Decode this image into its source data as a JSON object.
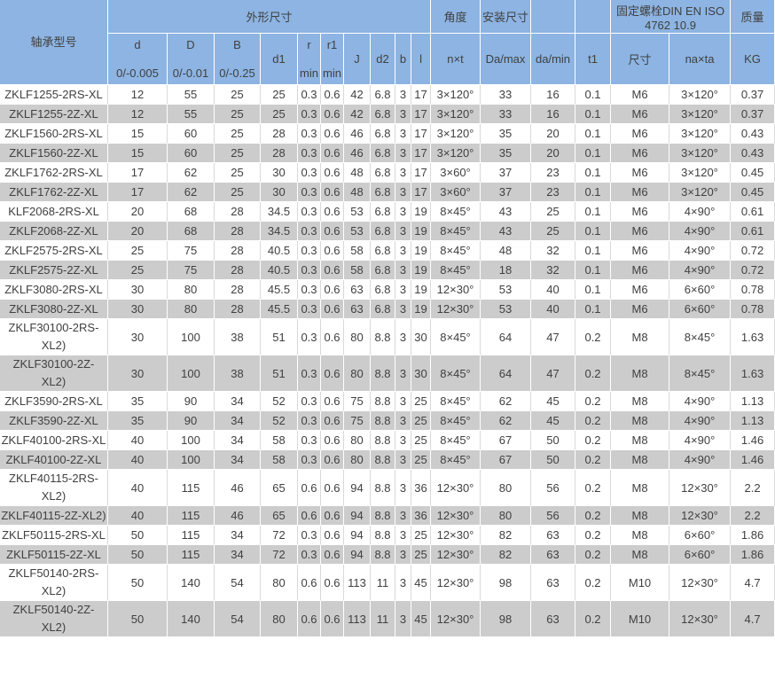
{
  "table": {
    "header": {
      "model": "轴承型号",
      "groups": {
        "outer_dims": "外形尺寸",
        "angle": "角度",
        "mount_dims": "安装尺寸",
        "blank_a": "",
        "blank_b": "",
        "bolt": "固定螺栓DIN EN ISO 4762  10.9",
        "mass": "质量"
      },
      "columns": {
        "d": {
          "label": "d",
          "tol": "0/-0.005"
        },
        "D": {
          "label": "D",
          "tol": "0/-0.01"
        },
        "B": {
          "label": "B",
          "tol": "0/-0.25"
        },
        "d1": {
          "label": "d1"
        },
        "r": {
          "label": "r",
          "tol": "min"
        },
        "r1": {
          "label": "r1",
          "tol": "min"
        },
        "J": {
          "label": "J"
        },
        "d2": {
          "label": "d2"
        },
        "b": {
          "label": "b"
        },
        "l": {
          "label": "l"
        },
        "nxt": {
          "label": "n×t"
        },
        "da_max": {
          "label": "Da/max"
        },
        "da_min": {
          "label": "da/min"
        },
        "t1": {
          "label": "t1"
        },
        "bolt_size": {
          "label": "尺寸"
        },
        "naxta": {
          "label": "na×ta"
        },
        "kg": {
          "label": "KG"
        }
      }
    },
    "rows": [
      [
        "ZKLF1255-2RS-XL",
        "12",
        "55",
        "25",
        "25",
        "0.3",
        "0.6",
        "42",
        "6.8",
        "3",
        "17",
        "3×120°",
        "33",
        "16",
        "0.1",
        "M6",
        "3×120°",
        "0.37"
      ],
      [
        "ZKLF1255-2Z-XL",
        "12",
        "55",
        "25",
        "25",
        "0.3",
        "0.6",
        "42",
        "6.8",
        "3",
        "17",
        "3×120°",
        "33",
        "16",
        "0.1",
        "M6",
        "3×120°",
        "0.37"
      ],
      [
        "ZKLF1560-2RS-XL",
        "15",
        "60",
        "25",
        "28",
        "0.3",
        "0.6",
        "46",
        "6.8",
        "3",
        "17",
        "3×120°",
        "35",
        "20",
        "0.1",
        "M6",
        "3×120°",
        "0.43"
      ],
      [
        "ZKLF1560-2Z-XL",
        "15",
        "60",
        "25",
        "28",
        "0.3",
        "0.6",
        "46",
        "6.8",
        "3",
        "17",
        "3×120°",
        "35",
        "20",
        "0.1",
        "M6",
        "3×120°",
        "0.43"
      ],
      [
        "ZKLF1762-2RS-XL",
        "17",
        "62",
        "25",
        "30",
        "0.3",
        "0.6",
        "48",
        "6.8",
        "3",
        "17",
        "3×60°",
        "37",
        "23",
        "0.1",
        "M6",
        "3×120°",
        "0.45"
      ],
      [
        "ZKLF1762-2Z-XL",
        "17",
        "62",
        "25",
        "30",
        "0.3",
        "0.6",
        "48",
        "6.8",
        "3",
        "17",
        "3×60°",
        "37",
        "23",
        "0.1",
        "M6",
        "3×120°",
        "0.45"
      ],
      [
        "KLF2068-2RS-XL",
        "20",
        "68",
        "28",
        "34.5",
        "0.3",
        "0.6",
        "53",
        "6.8",
        "3",
        "19",
        "8×45°",
        "43",
        "25",
        "0.1",
        "M6",
        "4×90°",
        "0.61"
      ],
      [
        "ZKLF2068-2Z-XL",
        "20",
        "68",
        "28",
        "34.5",
        "0.3",
        "0.6",
        "53",
        "6.8",
        "3",
        "19",
        "8×45°",
        "43",
        "25",
        "0.1",
        "M6",
        "4×90°",
        "0.61"
      ],
      [
        "ZKLF2575-2RS-XL",
        "25",
        "75",
        "28",
        "40.5",
        "0.3",
        "0.6",
        "58",
        "6.8",
        "3",
        "19",
        "8×45°",
        "48",
        "32",
        "0.1",
        "M6",
        "4×90°",
        "0.72"
      ],
      [
        "ZKLF2575-2Z-XL",
        "25",
        "75",
        "28",
        "40.5",
        "0.3",
        "0.6",
        "58",
        "6.8",
        "3",
        "19",
        "8×45°",
        "18",
        "32",
        "0.1",
        "M6",
        "4×90°",
        "0.72"
      ],
      [
        "ZKLF3080-2RS-XL",
        "30",
        "80",
        "28",
        "45.5",
        "0.3",
        "0.6",
        "63",
        "6.8",
        "3",
        "19",
        "12×30°",
        "53",
        "40",
        "0.1",
        "M6",
        "6×60°",
        "0.78"
      ],
      [
        "ZKLF3080-2Z-XL",
        "30",
        "80",
        "28",
        "45.5",
        "0.3",
        "0.6",
        "63",
        "6.8",
        "3",
        "19",
        "12×30°",
        "53",
        "40",
        "0.1",
        "M6",
        "6×60°",
        "0.78"
      ],
      [
        "ZKLF30100-2RS-XL2)",
        "30",
        "100",
        "38",
        "51",
        "0.3",
        "0.6",
        "80",
        "8.8",
        "3",
        "30",
        "8×45°",
        "64",
        "47",
        "0.2",
        "M8",
        "8×45°",
        "1.63"
      ],
      [
        "ZKLF30100-2Z-XL2)",
        "30",
        "100",
        "38",
        "51",
        "0.3",
        "0.6",
        "80",
        "8.8",
        "3",
        "30",
        "8×45°",
        "64",
        "47",
        "0.2",
        "M8",
        "8×45°",
        "1.63"
      ],
      [
        "ZKLF3590-2RS-XL",
        "35",
        "90",
        "34",
        "52",
        "0.3",
        "0.6",
        "75",
        "8.8",
        "3",
        "25",
        "8×45°",
        "62",
        "45",
        "0.2",
        "M8",
        "4×90°",
        "1.13"
      ],
      [
        "ZKLF3590-2Z-XL",
        "35",
        "90",
        "34",
        "52",
        "0.3",
        "0.6",
        "75",
        "8.8",
        "3",
        "25",
        "8×45°",
        "62",
        "45",
        "0.2",
        "M8",
        "4×90°",
        "1.13"
      ],
      [
        "ZKLF40100-2RS-XL",
        "40",
        "100",
        "34",
        "58",
        "0.3",
        "0.6",
        "80",
        "8.8",
        "3",
        "25",
        "8×45°",
        "67",
        "50",
        "0.2",
        "M8",
        "4×90°",
        "1.46"
      ],
      [
        "ZKLF40100-2Z-XL",
        "40",
        "100",
        "34",
        "58",
        "0.3",
        "0.6",
        "80",
        "8.8",
        "3",
        "25",
        "8×45°",
        "67",
        "50",
        "0.2",
        "M8",
        "4×90°",
        "1.46"
      ],
      [
        "ZKLF40115-2RS-XL2)",
        "40",
        "115",
        "46",
        "65",
        "0.6",
        "0.6",
        "94",
        "8.8",
        "3",
        "36",
        "12×30°",
        "80",
        "56",
        "0.2",
        "M8",
        "12×30°",
        "2.2"
      ],
      [
        "ZKLF40115-2Z-XL2)",
        "40",
        "115",
        "46",
        "65",
        "0.6",
        "0.6",
        "94",
        "8.8",
        "3",
        "36",
        "12×30°",
        "80",
        "56",
        "0.2",
        "M8",
        "12×30°",
        "2.2"
      ],
      [
        "ZKLF50115-2RS-XL",
        "50",
        "115",
        "34",
        "72",
        "0.3",
        "0.6",
        "94",
        "8.8",
        "3",
        "25",
        "12×30°",
        "82",
        "63",
        "0.2",
        "M8",
        "6×60°",
        "1.86"
      ],
      [
        "ZKLF50115-2Z-XL",
        "50",
        "115",
        "34",
        "72",
        "0.3",
        "0.6",
        "94",
        "8.8",
        "3",
        "25",
        "12×30°",
        "82",
        "63",
        "0.2",
        "M8",
        "6×60°",
        "1.86"
      ],
      [
        "ZKLF50140-2RS-XL2)",
        "50",
        "140",
        "54",
        "80",
        "0.6",
        "0.6",
        "113",
        "11",
        "3",
        "45",
        "12×30°",
        "98",
        "63",
        "0.2",
        "M10",
        "12×30°",
        "4.7"
      ],
      [
        "ZKLF50140-2Z-XL2)",
        "50",
        "140",
        "54",
        "80",
        "0.6",
        "0.6",
        "113",
        "11",
        "3",
        "45",
        "12×30°",
        "98",
        "63",
        "0.2",
        "M10",
        "12×30°",
        "4.7"
      ]
    ]
  },
  "colors": {
    "header_bg": "#8db4e2",
    "alt_row_bg": "#cccccc",
    "text": "#404040",
    "grid_light": "#d9d9d9",
    "grid_white": "#ffffff"
  }
}
